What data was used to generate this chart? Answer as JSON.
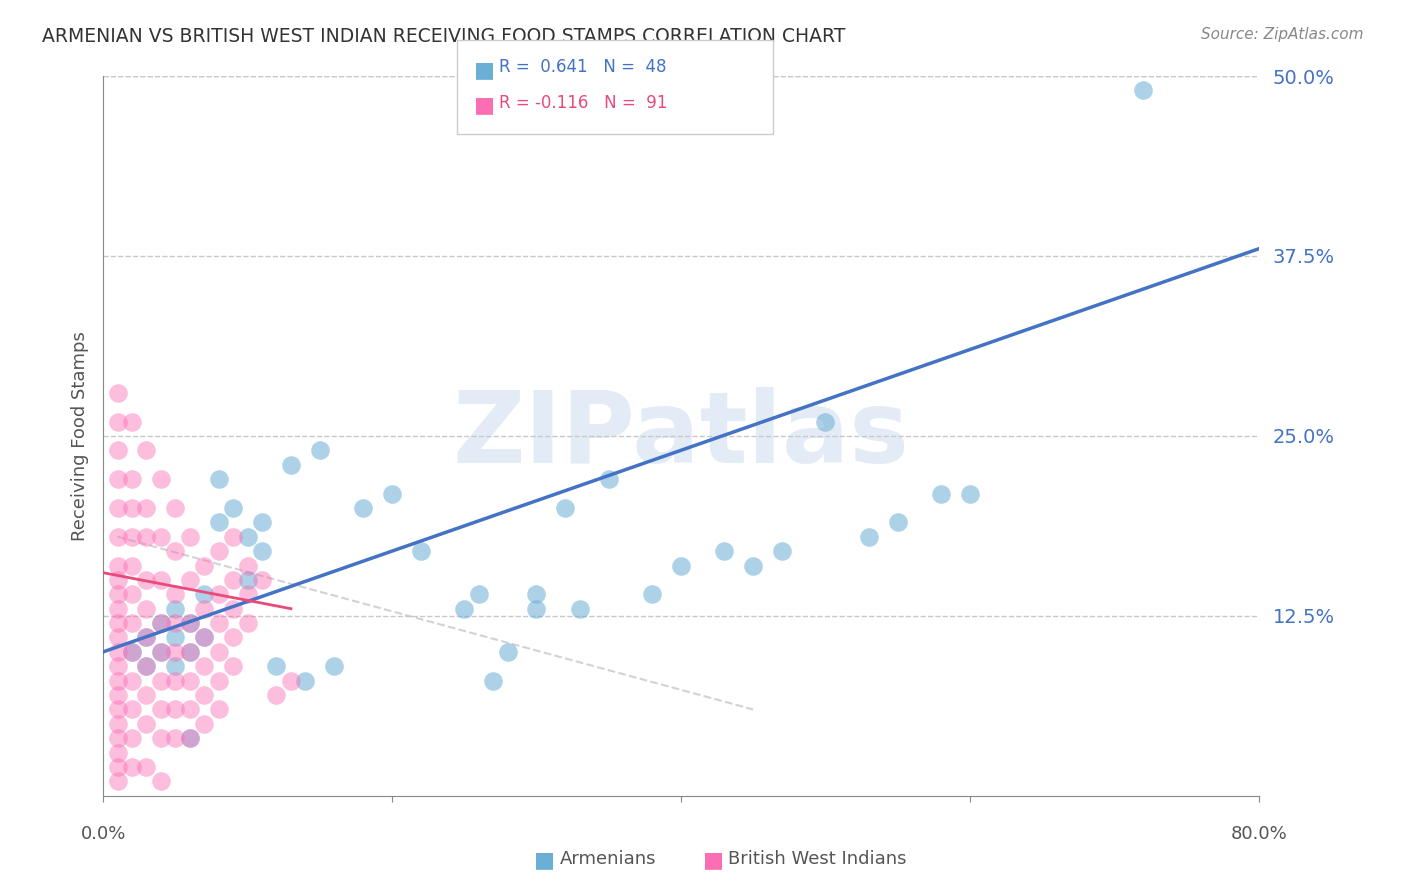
{
  "title": "ARMENIAN VS BRITISH WEST INDIAN RECEIVING FOOD STAMPS CORRELATION CHART",
  "source": "Source: ZipAtlas.com",
  "ylabel": "Receiving Food Stamps",
  "ytick_labels": [
    "12.5%",
    "25.0%",
    "37.5%",
    "50.0%"
  ],
  "ytick_values": [
    0.125,
    0.25,
    0.375,
    0.5
  ],
  "xlim": [
    0.0,
    0.8
  ],
  "ylim": [
    0.0,
    0.5
  ],
  "blue_color": "#6baed6",
  "pink_color": "#fb6eb4",
  "blue_R": 0.641,
  "blue_N": 48,
  "pink_R": -0.116,
  "pink_N": 91,
  "watermark": "ZIPatlas",
  "watermark_color": "#b0c8e8",
  "legend_label_blue": "Armenians",
  "legend_label_pink": "British West Indians",
  "blue_scatter": [
    [
      0.02,
      0.1
    ],
    [
      0.03,
      0.11
    ],
    [
      0.03,
      0.09
    ],
    [
      0.04,
      0.12
    ],
    [
      0.04,
      0.1
    ],
    [
      0.05,
      0.13
    ],
    [
      0.05,
      0.11
    ],
    [
      0.05,
      0.09
    ],
    [
      0.06,
      0.12
    ],
    [
      0.06,
      0.1
    ],
    [
      0.07,
      0.14
    ],
    [
      0.07,
      0.11
    ],
    [
      0.08,
      0.22
    ],
    [
      0.08,
      0.19
    ],
    [
      0.09,
      0.2
    ],
    [
      0.1,
      0.18
    ],
    [
      0.1,
      0.15
    ],
    [
      0.11,
      0.19
    ],
    [
      0.11,
      0.17
    ],
    [
      0.12,
      0.09
    ],
    [
      0.13,
      0.23
    ],
    [
      0.14,
      0.08
    ],
    [
      0.15,
      0.24
    ],
    [
      0.16,
      0.09
    ],
    [
      0.18,
      0.2
    ],
    [
      0.2,
      0.21
    ],
    [
      0.22,
      0.17
    ],
    [
      0.25,
      0.13
    ],
    [
      0.26,
      0.14
    ],
    [
      0.27,
      0.08
    ],
    [
      0.28,
      0.1
    ],
    [
      0.3,
      0.14
    ],
    [
      0.3,
      0.13
    ],
    [
      0.32,
      0.2
    ],
    [
      0.33,
      0.13
    ],
    [
      0.35,
      0.22
    ],
    [
      0.38,
      0.14
    ],
    [
      0.4,
      0.16
    ],
    [
      0.43,
      0.17
    ],
    [
      0.45,
      0.16
    ],
    [
      0.47,
      0.17
    ],
    [
      0.5,
      0.26
    ],
    [
      0.53,
      0.18
    ],
    [
      0.55,
      0.19
    ],
    [
      0.58,
      0.21
    ],
    [
      0.6,
      0.21
    ],
    [
      0.72,
      0.49
    ],
    [
      0.06,
      0.04
    ]
  ],
  "pink_scatter": [
    [
      0.01,
      0.28
    ],
    [
      0.01,
      0.26
    ],
    [
      0.01,
      0.24
    ],
    [
      0.01,
      0.22
    ],
    [
      0.01,
      0.2
    ],
    [
      0.01,
      0.18
    ],
    [
      0.01,
      0.16
    ],
    [
      0.01,
      0.15
    ],
    [
      0.01,
      0.14
    ],
    [
      0.01,
      0.13
    ],
    [
      0.01,
      0.12
    ],
    [
      0.01,
      0.11
    ],
    [
      0.01,
      0.1
    ],
    [
      0.01,
      0.09
    ],
    [
      0.01,
      0.08
    ],
    [
      0.01,
      0.07
    ],
    [
      0.01,
      0.06
    ],
    [
      0.01,
      0.05
    ],
    [
      0.01,
      0.04
    ],
    [
      0.01,
      0.03
    ],
    [
      0.01,
      0.02
    ],
    [
      0.01,
      0.01
    ],
    [
      0.02,
      0.26
    ],
    [
      0.02,
      0.22
    ],
    [
      0.02,
      0.2
    ],
    [
      0.02,
      0.18
    ],
    [
      0.02,
      0.16
    ],
    [
      0.02,
      0.14
    ],
    [
      0.02,
      0.12
    ],
    [
      0.02,
      0.1
    ],
    [
      0.02,
      0.08
    ],
    [
      0.02,
      0.06
    ],
    [
      0.02,
      0.04
    ],
    [
      0.02,
      0.02
    ],
    [
      0.03,
      0.24
    ],
    [
      0.03,
      0.2
    ],
    [
      0.03,
      0.18
    ],
    [
      0.03,
      0.15
    ],
    [
      0.03,
      0.13
    ],
    [
      0.03,
      0.11
    ],
    [
      0.03,
      0.09
    ],
    [
      0.03,
      0.07
    ],
    [
      0.03,
      0.05
    ],
    [
      0.03,
      0.02
    ],
    [
      0.04,
      0.22
    ],
    [
      0.04,
      0.18
    ],
    [
      0.04,
      0.15
    ],
    [
      0.04,
      0.12
    ],
    [
      0.04,
      0.1
    ],
    [
      0.04,
      0.08
    ],
    [
      0.04,
      0.06
    ],
    [
      0.04,
      0.04
    ],
    [
      0.04,
      0.01
    ],
    [
      0.05,
      0.2
    ],
    [
      0.05,
      0.17
    ],
    [
      0.05,
      0.14
    ],
    [
      0.05,
      0.12
    ],
    [
      0.05,
      0.1
    ],
    [
      0.05,
      0.08
    ],
    [
      0.05,
      0.06
    ],
    [
      0.05,
      0.04
    ],
    [
      0.06,
      0.18
    ],
    [
      0.06,
      0.15
    ],
    [
      0.06,
      0.12
    ],
    [
      0.06,
      0.1
    ],
    [
      0.06,
      0.08
    ],
    [
      0.06,
      0.06
    ],
    [
      0.06,
      0.04
    ],
    [
      0.07,
      0.16
    ],
    [
      0.07,
      0.13
    ],
    [
      0.07,
      0.11
    ],
    [
      0.07,
      0.09
    ],
    [
      0.07,
      0.07
    ],
    [
      0.07,
      0.05
    ],
    [
      0.08,
      0.17
    ],
    [
      0.08,
      0.14
    ],
    [
      0.08,
      0.12
    ],
    [
      0.08,
      0.1
    ],
    [
      0.08,
      0.08
    ],
    [
      0.08,
      0.06
    ],
    [
      0.09,
      0.18
    ],
    [
      0.09,
      0.15
    ],
    [
      0.09,
      0.13
    ],
    [
      0.09,
      0.11
    ],
    [
      0.09,
      0.09
    ],
    [
      0.1,
      0.16
    ],
    [
      0.1,
      0.14
    ],
    [
      0.1,
      0.12
    ],
    [
      0.11,
      0.15
    ],
    [
      0.12,
      0.07
    ],
    [
      0.13,
      0.08
    ]
  ],
  "blue_line_color": "#4472c4",
  "pink_line_color": "#e84b7a",
  "dashed_line_color": "#c0c0c0",
  "title_color": "#333333",
  "right_label_color": "#4472c4",
  "background_color": "#ffffff"
}
